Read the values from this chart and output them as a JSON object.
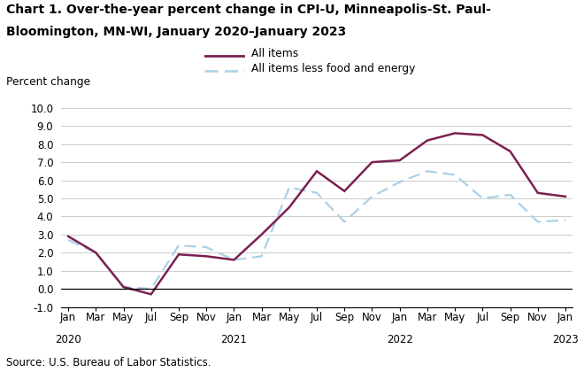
{
  "title_line1": "Chart 1. Over-the-year percent change in CPI-U, Minneapolis-St. Paul-",
  "title_line2": "Bloomington, MN-WI, January 2020–January 2023",
  "ylabel": "Percent change",
  "source": "Source: U.S. Bureau of Labor Statistics.",
  "ylim": [
    -1.0,
    10.0
  ],
  "yticks": [
    -1.0,
    0.0,
    1.0,
    2.0,
    3.0,
    4.0,
    5.0,
    6.0,
    7.0,
    8.0,
    9.0,
    10.0
  ],
  "month_labels": [
    "Jan",
    "Mar",
    "May",
    "Jul",
    "Sep",
    "Nov",
    "Jan",
    "Mar",
    "May",
    "Jul",
    "Sep",
    "Nov",
    "Jan",
    "Mar",
    "May",
    "Jul",
    "Sep",
    "Nov",
    "Jan"
  ],
  "year_labels": [
    "2020",
    "",
    "",
    "",
    "",
    "",
    "2021",
    "",
    "",
    "",
    "",
    "",
    "2022",
    "",
    "",
    "",
    "",
    "",
    "2023"
  ],
  "x_positions": [
    0,
    2,
    4,
    6,
    8,
    10,
    12,
    14,
    16,
    18,
    20,
    22,
    24,
    26,
    28,
    30,
    32,
    34,
    36
  ],
  "all_items": [
    2.9,
    2.0,
    0.1,
    -0.3,
    1.9,
    1.8,
    1.6,
    3.0,
    4.5,
    6.5,
    5.4,
    7.0,
    7.1,
    8.2,
    8.6,
    8.5,
    7.6,
    5.3,
    5.1
  ],
  "all_items_less": [
    2.7,
    2.0,
    0.1,
    0.0,
    2.4,
    2.3,
    1.6,
    1.8,
    5.6,
    5.3,
    3.7,
    5.1,
    5.9,
    6.5,
    6.3,
    5.0,
    5.2,
    3.7,
    3.8
  ],
  "line1_color": "#7b2151",
  "line2_color": "#aad0e8",
  "line1_label": "All items",
  "line2_label": "All items less food and energy",
  "grid_color": "#cccccc",
  "bg_color": "#ffffff"
}
